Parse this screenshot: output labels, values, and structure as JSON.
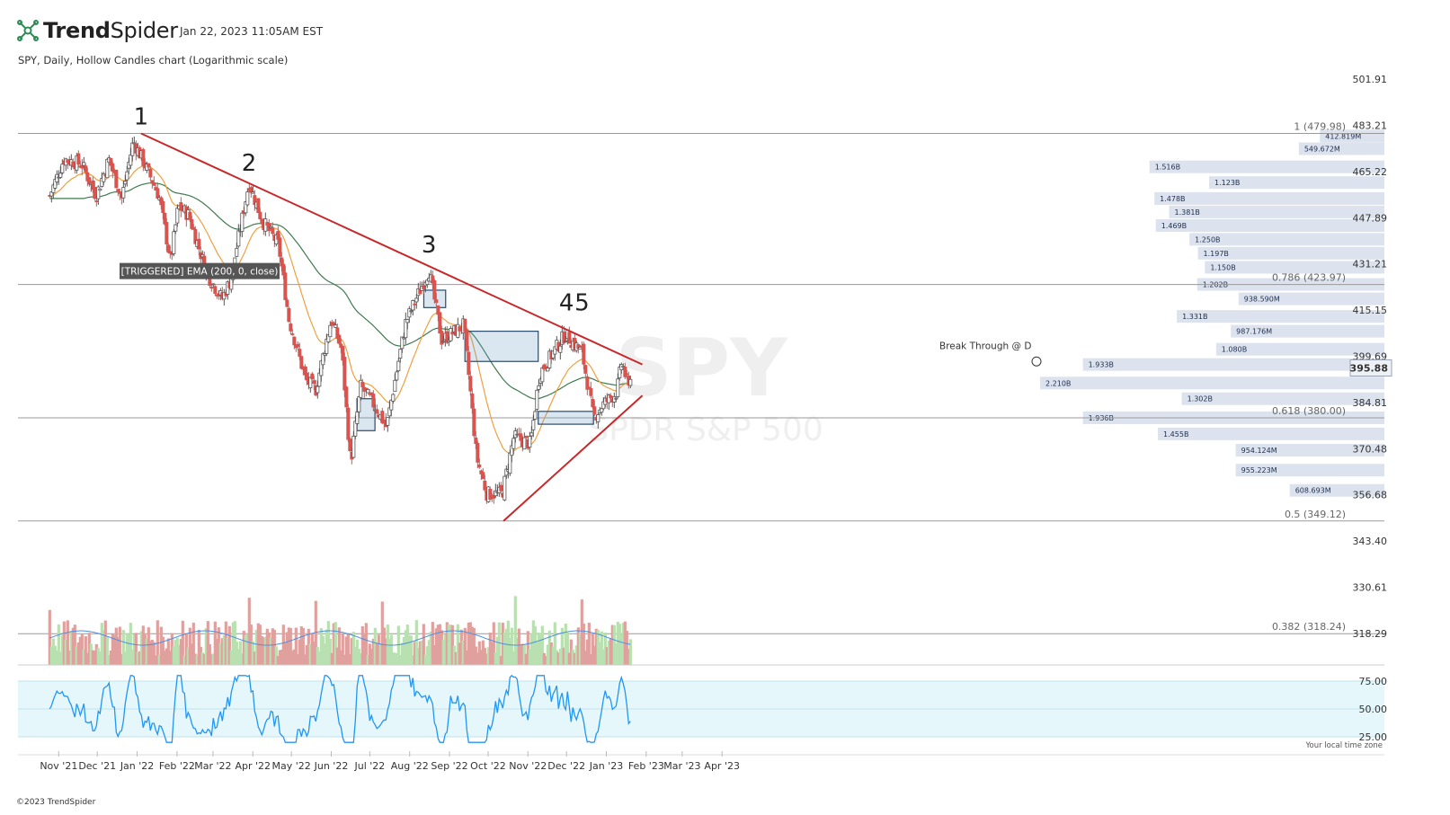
{
  "header": {
    "brand_bold": "Trend",
    "brand_light": "Spider",
    "timestamp": "Jan 22, 2023 11:05AM EST",
    "subtitle": "SPY, Daily, Hollow Candles chart (Logarithmic scale)"
  },
  "watermark": {
    "ticker": "SPY",
    "name": "SPDR S&P 500"
  },
  "colors": {
    "up": "#b9e0b0",
    "down": "#d9534f",
    "ema_short": "#f0a040",
    "ema_long": "#3f7a4e",
    "trendline": "#c8282a",
    "volume_ma": "#4a90e2",
    "rsi": "#2196f3",
    "vp_bar": "#dce3ee"
  },
  "chart_data": {
    "type": "candlestick",
    "scale": "log",
    "price_axis_ticks": [
      "501.91",
      "483.21",
      "465.22",
      "447.89",
      "431.21",
      "415.15",
      "399.69",
      "384.81",
      "370.48",
      "356.68",
      "343.40",
      "330.61",
      "318.29"
    ],
    "last_price": "395.88",
    "x_tick_labels": [
      "Nov '21",
      "Dec '21",
      "Jan '22",
      "Feb '22",
      "Mar '22",
      "Apr '22",
      "May '22",
      "Jun '22",
      "Jul '22",
      "Aug '22",
      "Sep '22",
      "Oct '22",
      "Nov '22",
      "Dec '22",
      "Jan '23",
      "Feb '23",
      "Mar '23",
      "Apr '23"
    ],
    "close_path": [
      [
        "2021-10-25",
        456
      ],
      [
        "2021-11-05",
        470
      ],
      [
        "2021-11-19",
        468
      ],
      [
        "2021-11-30",
        456
      ],
      [
        "2021-12-10",
        470
      ],
      [
        "2021-12-20",
        455
      ],
      [
        "2021-12-29",
        477
      ],
      [
        "2022-01-05",
        470
      ],
      [
        "2022-01-18",
        456
      ],
      [
        "2022-01-27",
        432
      ],
      [
        "2022-02-02",
        452
      ],
      [
        "2022-02-10",
        449
      ],
      [
        "2022-02-24",
        428
      ],
      [
        "2022-03-08",
        419
      ],
      [
        "2022-03-15",
        426
      ],
      [
        "2022-03-29",
        461
      ],
      [
        "2022-04-08",
        447
      ],
      [
        "2022-04-21",
        438
      ],
      [
        "2022-04-29",
        412
      ],
      [
        "2022-05-12",
        392
      ],
      [
        "2022-05-20",
        389
      ],
      [
        "2022-06-01",
        412
      ],
      [
        "2022-06-09",
        402
      ],
      [
        "2022-06-16",
        366
      ],
      [
        "2022-06-24",
        390
      ],
      [
        "2022-07-06",
        383
      ],
      [
        "2022-07-14",
        377
      ],
      [
        "2022-07-29",
        411
      ],
      [
        "2022-08-16",
        429
      ],
      [
        "2022-08-26",
        405
      ],
      [
        "2022-09-12",
        410
      ],
      [
        "2022-09-22",
        368
      ],
      [
        "2022-09-30",
        357
      ],
      [
        "2022-10-12",
        357
      ],
      [
        "2022-10-21",
        374
      ],
      [
        "2022-11-03",
        372
      ],
      [
        "2022-11-10",
        394
      ],
      [
        "2022-11-30",
        407
      ],
      [
        "2022-12-13",
        401
      ],
      [
        "2022-12-22",
        380
      ],
      [
        "2022-12-29",
        384
      ],
      [
        "2023-01-09",
        388
      ],
      [
        "2023-01-13",
        398
      ],
      [
        "2023-01-19",
        388
      ],
      [
        "2023-01-20",
        396
      ]
    ],
    "ema_labels": [
      "[TRIGGERED] EMA (200, 0, close)"
    ],
    "wave_labels": [
      "1",
      "2",
      "3",
      "4",
      "5"
    ],
    "fib_levels": [
      "1 (479.98)",
      "0.786 (423.97)",
      "0.618 (380.00)",
      "0.5 (349.12)",
      "0.382 (318.24)"
    ],
    "annotations": [
      "Break Through @ D"
    ],
    "volume_profile": [
      {
        "label": "412.819M",
        "price": 479
      },
      {
        "label": "549.672M",
        "price": 474
      },
      {
        "label": "1.516B",
        "price": 467
      },
      {
        "label": "1.123B",
        "price": 461
      },
      {
        "label": "1.478B",
        "price": 455
      },
      {
        "label": "1.381B",
        "price": 450
      },
      {
        "label": "1.469B",
        "price": 445
      },
      {
        "label": "1.250B",
        "price": 440
      },
      {
        "label": "1.197B",
        "price": 435
      },
      {
        "label": "1.150B",
        "price": 430
      },
      {
        "label": "1.202B",
        "price": 424
      },
      {
        "label": "938.590M",
        "price": 419
      },
      {
        "label": "1.331B",
        "price": 413
      },
      {
        "label": "987.176M",
        "price": 408
      },
      {
        "label": "1.080B",
        "price": 402
      },
      {
        "label": "1.933B",
        "price": 397
      },
      {
        "label": "2.210B",
        "price": 391
      },
      {
        "label": "1.302B",
        "price": 386
      },
      {
        "label": "1.936B",
        "price": 380
      },
      {
        "label": "1.455B",
        "price": 375
      },
      {
        "label": "954.124M",
        "price": 370
      },
      {
        "label": "955.223M",
        "price": 364
      },
      {
        "label": "608.693M",
        "price": 358
      }
    ],
    "rsi_ticks": [
      "75.00",
      "50.00",
      "25.00"
    ],
    "rsi_note": "Your local time zone"
  },
  "footer": {
    "copyright": "©2023 TrendSpider"
  }
}
